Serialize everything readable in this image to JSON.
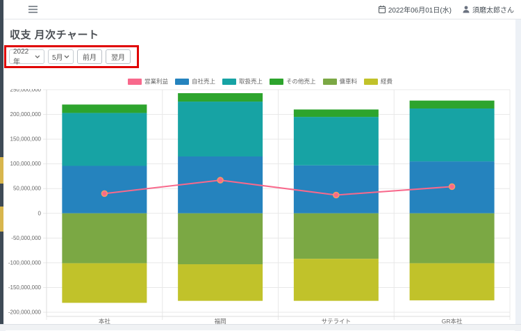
{
  "header": {
    "date": "2022年06月01日(水)",
    "user": "須磨太郎さん"
  },
  "page": {
    "title": "収支 月次チャート"
  },
  "controls": {
    "year_select": "2022年",
    "month_select": "5月",
    "prev_button": "前月",
    "next_button": "翌月",
    "annotation_color": "#e00000"
  },
  "chart_data": {
    "type": "bar",
    "subtype": "stacked-bar-with-line",
    "categories": [
      "本社",
      "福岡",
      "サテライト",
      "GR本社"
    ],
    "series": [
      {
        "name": "自社売上",
        "color": "#2583BE",
        "values": [
          96000000,
          115000000,
          97000000,
          105000000
        ]
      },
      {
        "name": "取扱売上",
        "color": "#17A3A4",
        "values": [
          107000000,
          111000000,
          98000000,
          107000000
        ]
      },
      {
        "name": "その他売上",
        "color": "#2DA42D",
        "values": [
          17000000,
          17000000,
          15000000,
          16000000
        ]
      },
      {
        "name": "傭車料",
        "color": "#7BA844",
        "values": [
          -101000000,
          -103000000,
          -92000000,
          -101000000
        ]
      },
      {
        "name": "経費",
        "color": "#C1C22A",
        "values": [
          -80000000,
          -74000000,
          -85000000,
          -75000000
        ]
      }
    ],
    "line_series": {
      "name": "営業利益",
      "color": "#F8698C",
      "point_border_color": "#F79B64",
      "values": [
        40000000,
        67000000,
        37000000,
        54000000
      ]
    },
    "legend_position": "top",
    "grid": true,
    "ylim": [
      -200000000,
      250000000
    ],
    "ytick_step": 50000000,
    "ytick_labels": [
      "250,000,000",
      "200,000,000",
      "150,000,000",
      "100,000,000",
      "50,000,000",
      "0",
      "-50,000,000",
      "-100,000,000",
      "-150,000,000",
      "-200,000,000"
    ]
  }
}
